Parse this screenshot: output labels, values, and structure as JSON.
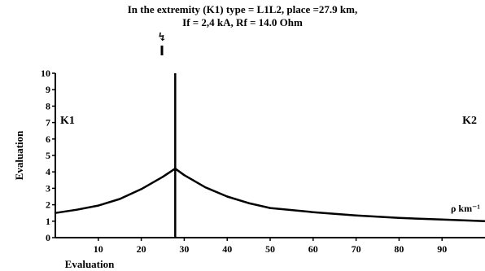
{
  "title_lines": [
    "In the extremity (K1) type = L1L2, place =27.9 km,",
    "If = 2,4 kA, Rf = 14.0 Ohm"
  ],
  "fault_symbol": "↯",
  "chart_data": {
    "type": "line",
    "title": "In the extremity (K1) type = L1L2, place =27.9 km, If = 2,4 kA, Rf = 14.0 Ohm",
    "xlabel": "Evaluation",
    "ylabel": "Evaluation",
    "xlim": [
      0,
      100
    ],
    "ylim": [
      0,
      10
    ],
    "x_ticks": [
      10,
      20,
      30,
      40,
      50,
      60,
      70,
      80,
      90
    ],
    "y_ticks": [
      0,
      1,
      2,
      3,
      4,
      5,
      6,
      7,
      8,
      9,
      10
    ],
    "grid": false,
    "fault_location_x": 27.9,
    "series": [
      {
        "unit_label": "ρ km⁻¹",
        "x": [
          0,
          5,
          10,
          15,
          20,
          25,
          27.9,
          30,
          35,
          40,
          45,
          50,
          60,
          70,
          80,
          90,
          100
        ],
        "y": [
          1.5,
          1.7,
          1.95,
          2.35,
          2.95,
          3.7,
          4.2,
          3.8,
          3.05,
          2.5,
          2.1,
          1.8,
          1.55,
          1.35,
          1.2,
          1.1,
          1.0
        ]
      }
    ],
    "annotations": {
      "left": "K1",
      "right": "K2"
    },
    "colors": {
      "line": "#000000",
      "axis": "#000000"
    }
  }
}
